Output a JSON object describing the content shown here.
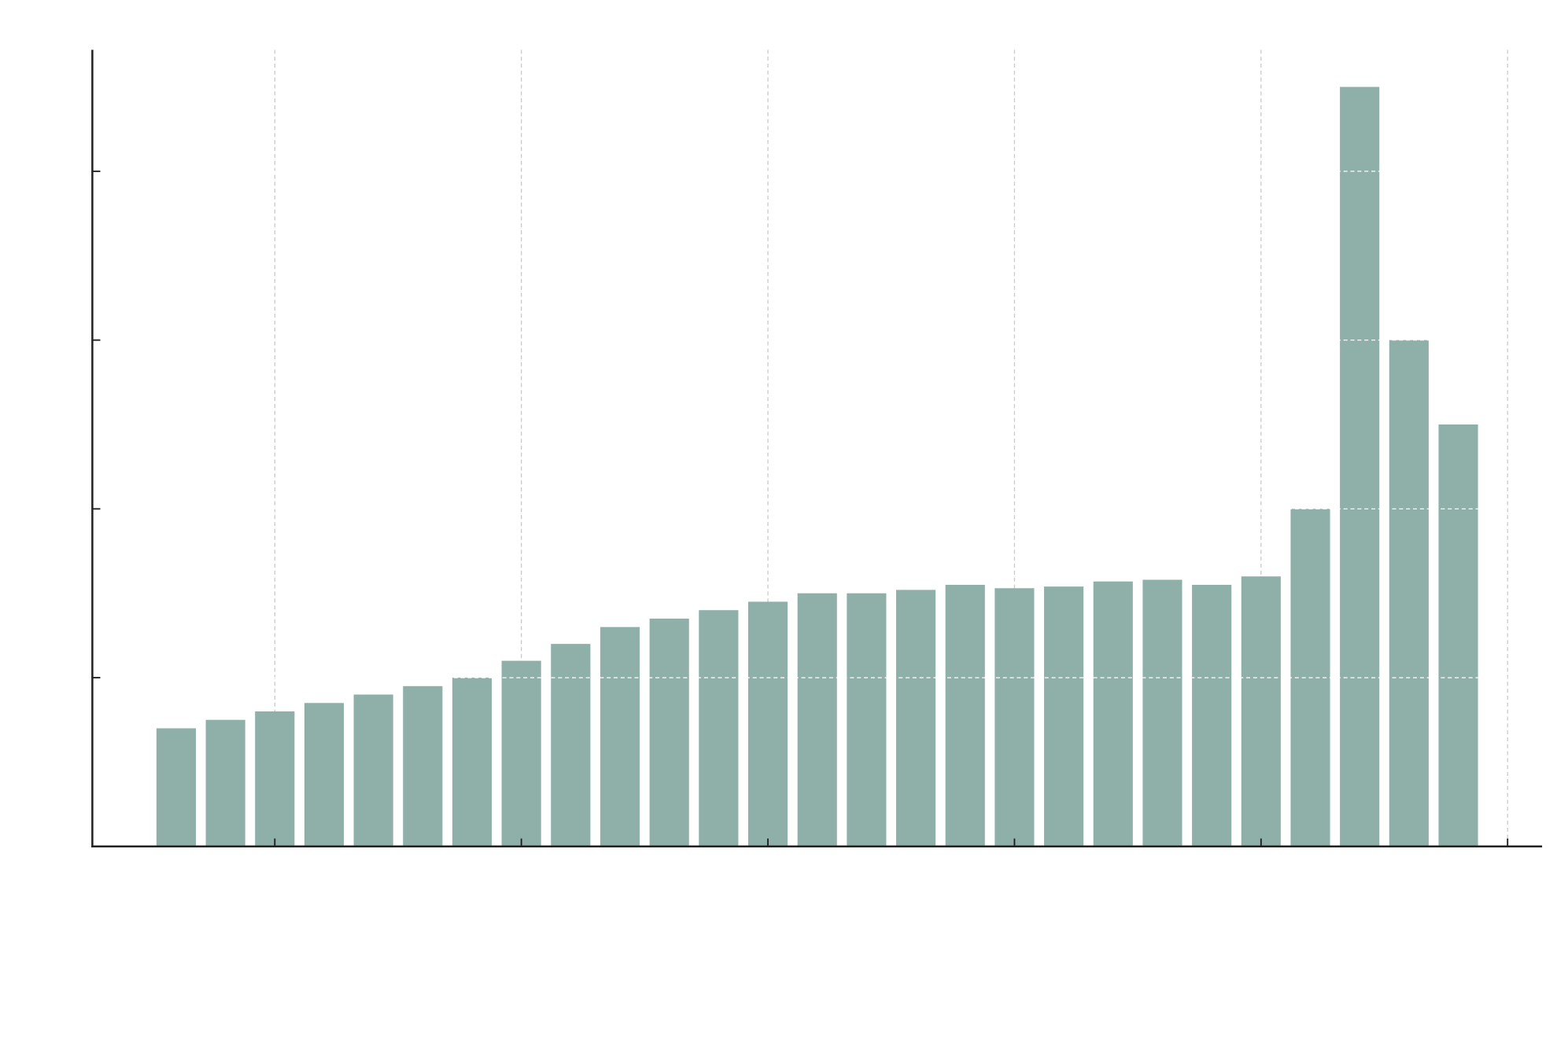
{
  "chart_data": {
    "type": "bar",
    "title": "",
    "xlabel": "",
    "ylabel": "",
    "x": [
      0,
      1,
      2,
      3,
      4,
      5,
      6,
      7,
      8,
      9,
      10,
      11,
      12,
      13,
      14,
      15,
      16,
      17,
      18,
      19,
      20,
      21,
      22,
      23,
      24,
      25,
      26
    ],
    "values": [
      0.7,
      0.75,
      0.8,
      0.85,
      0.9,
      0.95,
      1.0,
      1.1,
      1.2,
      1.3,
      1.35,
      1.4,
      1.45,
      1.5,
      1.5,
      1.52,
      1.55,
      1.53,
      1.54,
      1.57,
      1.58,
      1.55,
      1.6,
      2.0,
      4.5,
      3.0,
      2.5
    ],
    "xticks": [
      2,
      7,
      12,
      17,
      22,
      27
    ],
    "yticks": [
      1,
      2,
      3,
      4
    ],
    "xlim": [
      -1.7,
      27.7
    ],
    "ylim": [
      0,
      4.72
    ],
    "grid": true,
    "bar_color": "#8fb0a8",
    "axis_color": "#222222",
    "vgrid_color": "#c8c8c8",
    "hgrid_color": "#ffffff"
  }
}
